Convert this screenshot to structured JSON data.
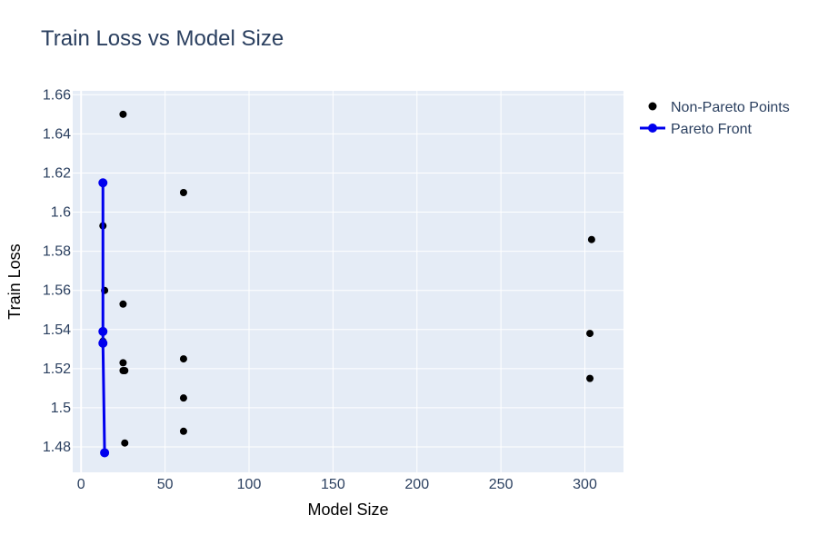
{
  "chart_data": {
    "type": "scatter",
    "title": "Train Loss vs Model Size",
    "xlabel": "Model Size",
    "ylabel": "Train Loss",
    "xlim": [
      -5,
      323
    ],
    "ylim": [
      1.467,
      1.662
    ],
    "x_ticks": [
      0,
      50,
      100,
      150,
      200,
      250,
      300
    ],
    "y_ticks": [
      1.48,
      1.5,
      1.52,
      1.54,
      1.56,
      1.58,
      1.6,
      1.62,
      1.64,
      1.66
    ],
    "y_tick_labels": [
      "1.48",
      "1.5",
      "1.52",
      "1.54",
      "1.56",
      "1.58",
      "1.6",
      "1.62",
      "1.64",
      "1.66"
    ],
    "x_tick_labels": [
      "0",
      "50",
      "100",
      "150",
      "200",
      "250",
      "300"
    ],
    "grid": true,
    "legend_position": "top-right",
    "colors": {
      "plot_bg": "#e5ecf6",
      "grid": "#ffffff",
      "non_pareto": "#000000",
      "pareto": "#0000ee"
    },
    "series": [
      {
        "name": "Non-Pareto Points",
        "mode": "markers",
        "points": [
          {
            "x": 25,
            "y": 1.65
          },
          {
            "x": 61,
            "y": 1.61
          },
          {
            "x": 13,
            "y": 1.593
          },
          {
            "x": 304,
            "y": 1.586
          },
          {
            "x": 14,
            "y": 1.56
          },
          {
            "x": 25,
            "y": 1.553
          },
          {
            "x": 303,
            "y": 1.538
          },
          {
            "x": 13,
            "y": 1.534
          },
          {
            "x": 61,
            "y": 1.525
          },
          {
            "x": 25,
            "y": 1.523
          },
          {
            "x": 25,
            "y": 1.519
          },
          {
            "x": 26,
            "y": 1.519
          },
          {
            "x": 303,
            "y": 1.515
          },
          {
            "x": 61,
            "y": 1.505
          },
          {
            "x": 61,
            "y": 1.488
          },
          {
            "x": 26,
            "y": 1.482
          }
        ]
      },
      {
        "name": "Pareto Front",
        "mode": "lines+markers",
        "points": [
          {
            "x": 13,
            "y": 1.615
          },
          {
            "x": 13,
            "y": 1.539
          },
          {
            "x": 13,
            "y": 1.533
          },
          {
            "x": 14,
            "y": 1.477
          }
        ]
      }
    ]
  }
}
